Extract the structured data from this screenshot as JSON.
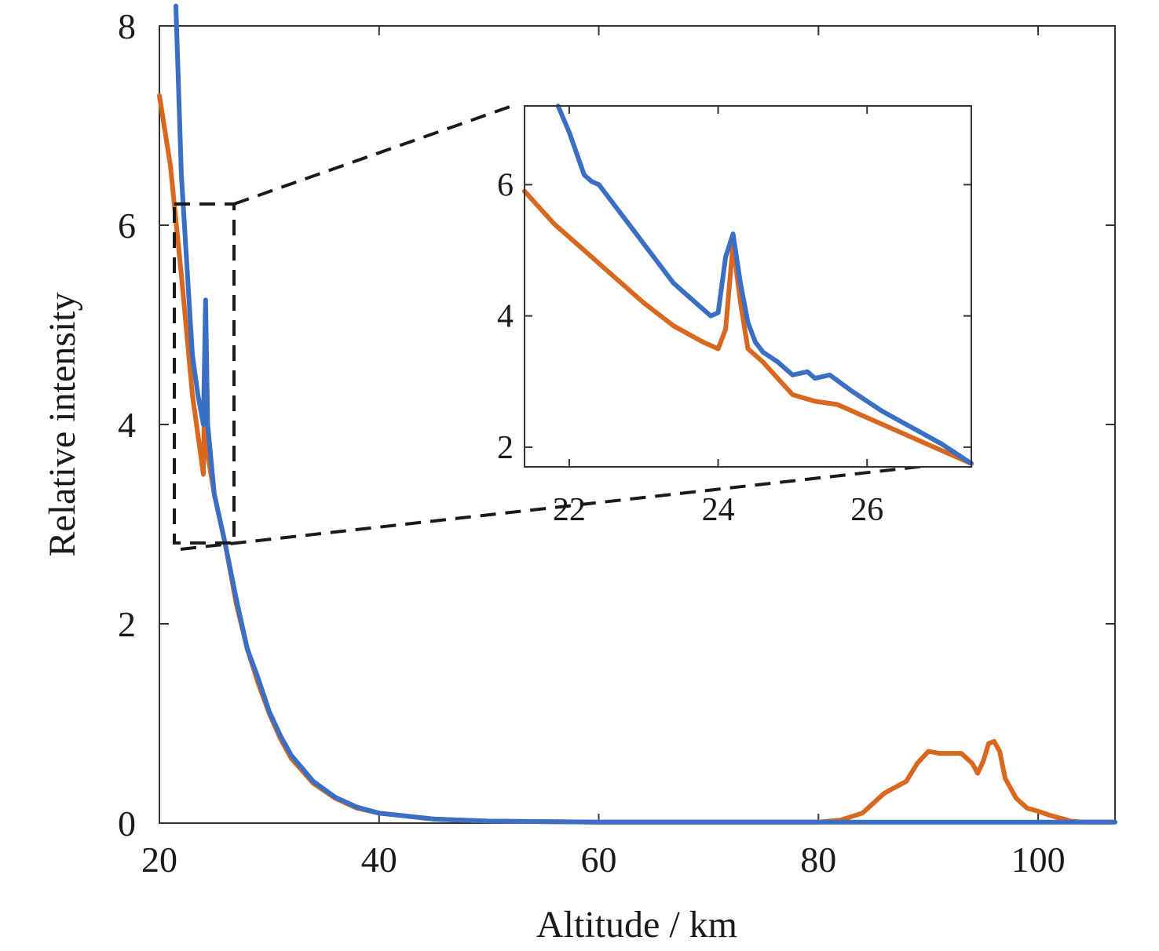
{
  "chart_data": [
    {
      "type": "line",
      "title": "",
      "xlabel": "Altitude / km",
      "ylabel": "Relative intensity",
      "xlim": [
        20,
        107
      ],
      "ylim": [
        0,
        8
      ],
      "xticks": [
        20,
        40,
        60,
        80,
        100
      ],
      "yticks": [
        0,
        2,
        4,
        6,
        8
      ],
      "xtick_labels": [
        "20",
        "40",
        "60",
        "80",
        "100"
      ],
      "ytick_labels": [
        "0",
        "2",
        "4",
        "6",
        "8"
      ],
      "grid": false,
      "legend": "none",
      "series": [
        {
          "color": "#d8671f",
          "x": [
            20,
            21,
            22,
            23,
            23.5,
            24,
            24.2,
            24.4,
            25,
            26,
            27,
            28,
            29,
            30,
            31,
            32,
            34,
            36,
            38,
            40,
            45,
            50,
            60,
            70,
            80,
            82,
            84,
            86,
            88,
            89,
            90,
            91,
            92,
            93,
            94,
            94.5,
            95,
            95.5,
            96,
            96.5,
            97,
            98,
            99,
            100,
            101,
            102,
            103,
            104,
            105,
            107
          ],
          "y": [
            7.3,
            6.6,
            5.5,
            4.3,
            3.9,
            3.5,
            5.1,
            3.7,
            3.3,
            2.8,
            2.2,
            1.75,
            1.4,
            1.1,
            0.85,
            0.65,
            0.4,
            0.25,
            0.15,
            0.1,
            0.04,
            0.02,
            0.01,
            0.01,
            0.01,
            0.03,
            0.1,
            0.3,
            0.42,
            0.6,
            0.72,
            0.7,
            0.7,
            0.7,
            0.6,
            0.5,
            0.62,
            0.8,
            0.82,
            0.72,
            0.45,
            0.25,
            0.15,
            0.12,
            0.08,
            0.05,
            0.02,
            0.01,
            0.01,
            0.01
          ]
        },
        {
          "color": "#3a6fc3",
          "x": [
            21.5,
            22,
            23,
            23.5,
            24,
            24.2,
            24.4,
            25,
            26,
            27,
            28,
            29,
            30,
            31,
            32,
            34,
            36,
            38,
            40,
            45,
            50,
            60,
            70,
            80,
            90,
            100,
            107
          ],
          "y": [
            8.2,
            6.5,
            4.7,
            4.3,
            4.0,
            5.25,
            4.0,
            3.3,
            2.8,
            2.25,
            1.75,
            1.45,
            1.12,
            0.88,
            0.68,
            0.42,
            0.26,
            0.16,
            0.1,
            0.04,
            0.02,
            0.01,
            0.01,
            0.01,
            0.01,
            0.01,
            0.01
          ]
        }
      ]
    },
    {
      "type": "line",
      "title": "",
      "xlabel": "",
      "ylabel": "",
      "xlim": [
        21.4,
        27.4
      ],
      "ylim": [
        1.7,
        7.2
      ],
      "xticks": [
        22,
        24,
        26
      ],
      "yticks": [
        2,
        4,
        6
      ],
      "xtick_labels": [
        "22",
        "24",
        "26"
      ],
      "ytick_labels": [
        "2",
        "4",
        "6"
      ],
      "grid": false,
      "legend": "none",
      "series": [
        {
          "color": "#d8671f",
          "x": [
            21.4,
            21.8,
            22.2,
            22.6,
            23,
            23.4,
            23.8,
            24.0,
            24.1,
            24.2,
            24.3,
            24.4,
            24.6,
            24.8,
            25.0,
            25.3,
            25.6,
            26.0,
            26.4,
            26.8,
            27.1,
            27.4
          ],
          "y": [
            5.9,
            5.4,
            5.0,
            4.6,
            4.2,
            3.85,
            3.6,
            3.5,
            3.8,
            5.1,
            4.2,
            3.5,
            3.3,
            3.05,
            2.8,
            2.7,
            2.65,
            2.45,
            2.25,
            2.05,
            1.9,
            1.75
          ]
        },
        {
          "color": "#3a6fc3",
          "x": [
            21.85,
            22.0,
            22.2,
            22.3,
            22.4,
            22.5,
            22.6,
            22.8,
            23.0,
            23.2,
            23.4,
            23.5,
            23.6,
            23.8,
            23.9,
            24.0,
            24.1,
            24.2,
            24.3,
            24.4,
            24.5,
            24.6,
            24.8,
            25.0,
            25.2,
            25.3,
            25.5,
            25.8,
            26.2,
            26.6,
            27.0,
            27.4
          ],
          "y": [
            7.2,
            6.8,
            6.15,
            6.05,
            6.0,
            5.85,
            5.7,
            5.4,
            5.1,
            4.8,
            4.5,
            4.4,
            4.3,
            4.1,
            4.0,
            4.05,
            4.9,
            5.25,
            4.5,
            3.9,
            3.6,
            3.45,
            3.3,
            3.1,
            3.15,
            3.05,
            3.1,
            2.85,
            2.55,
            2.3,
            2.05,
            1.75
          ]
        }
      ]
    }
  ]
}
